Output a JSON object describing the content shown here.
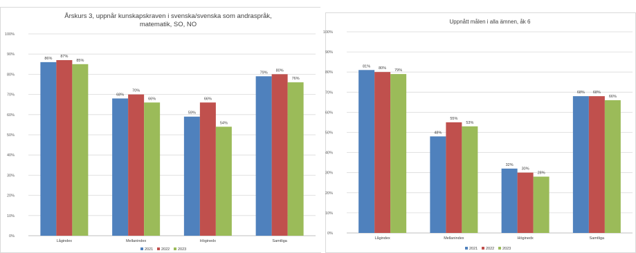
{
  "colors": {
    "2021": "#4f81bd",
    "2022": "#c0504d",
    "2023": "#9bbb59"
  },
  "chart_data": [
    {
      "type": "bar",
      "title": "Årskurs 3, uppnår kunskapskraven i svenska/svenska som andraspråk,\nmatematik, SO, NO",
      "categories": [
        "Lågindex",
        "Mellanindex",
        "Höginedx",
        "Samtliga"
      ],
      "series": [
        {
          "name": "2021",
          "values": [
            86,
            68,
            59,
            79
          ],
          "labels": [
            "86%",
            "68%",
            "59%",
            "79%"
          ]
        },
        {
          "name": "2022",
          "values": [
            87,
            70,
            66,
            80
          ],
          "labels": [
            "87%",
            "70%",
            "66%",
            "80%"
          ]
        },
        {
          "name": "2023",
          "values": [
            85,
            66,
            54,
            76
          ],
          "labels": [
            "85%",
            "66%",
            "54%",
            "76%"
          ]
        }
      ],
      "ylim": [
        0,
        100
      ],
      "yticks": [
        "0%",
        "10%",
        "20%",
        "30%",
        "40%",
        "50%",
        "60%",
        "70%",
        "80%",
        "90%",
        "100%"
      ],
      "grid": true,
      "legend": "bottom"
    },
    {
      "type": "bar",
      "title": "Uppnått målen i alla ämnen, åk 6",
      "categories": [
        "Lågindex",
        "Mellanindex",
        "Höginedx",
        "Samtliga"
      ],
      "series": [
        {
          "name": "2021",
          "values": [
            81,
            48,
            32,
            68
          ],
          "labels": [
            "81%",
            "48%",
            "32%",
            "68%"
          ]
        },
        {
          "name": "2022",
          "values": [
            80,
            55,
            30,
            68
          ],
          "labels": [
            "80%",
            "55%",
            "30%",
            "68%"
          ]
        },
        {
          "name": "2023",
          "values": [
            79,
            53,
            28,
            66
          ],
          "labels": [
            "79%",
            "53%",
            "28%",
            "66%"
          ]
        }
      ],
      "ylim": [
        0,
        100
      ],
      "yticks": [
        "0%",
        "10%",
        "20%",
        "30%",
        "40%",
        "50%",
        "60%",
        "70%",
        "80%",
        "90%",
        "100%"
      ],
      "grid": true,
      "legend": "bottom"
    }
  ]
}
